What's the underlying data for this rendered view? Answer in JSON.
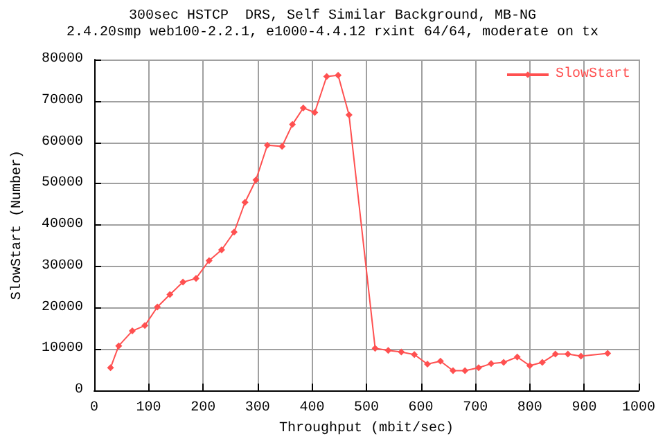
{
  "chart_data": {
    "type": "line",
    "title": "300sec HSTCP  DRS, Self Similar Background, MB-NG",
    "subtitle": "2.4.20smp web100-2.2.1, e1000-4.4.12 rxint 64/64, moderate on tx",
    "xlabel": "Throughput (mbit/sec)",
    "ylabel": "SlowStart (Number)",
    "x": [
      30,
      45,
      70,
      93,
      116,
      139,
      163,
      187,
      211,
      234,
      257,
      277,
      297,
      318,
      345,
      364,
      384,
      405,
      427,
      448,
      468,
      516,
      540,
      564,
      588,
      612,
      636,
      659,
      681,
      706,
      729,
      752,
      777,
      800,
      823,
      847,
      870,
      894,
      943
    ],
    "series": [
      {
        "name": "SlowStart",
        "color": "#ff5050",
        "values": [
          5500,
          10800,
          14400,
          15700,
          20200,
          23200,
          26200,
          27100,
          31400,
          34000,
          38300,
          45500,
          50900,
          59300,
          59000,
          64300,
          68300,
          67200,
          75900,
          76200,
          66600,
          10200,
          9700,
          9300,
          8700,
          6400,
          7100,
          4800,
          4800,
          5500,
          6500,
          6800,
          8100,
          6000,
          6800,
          8800,
          8800,
          8300,
          9000
        ]
      }
    ],
    "xlim": [
      0,
      1000
    ],
    "xticks": [
      0,
      100,
      200,
      300,
      400,
      500,
      600,
      700,
      800,
      900,
      1000
    ],
    "ylim": [
      0,
      80000
    ],
    "yticks": [
      0,
      10000,
      20000,
      30000,
      40000,
      50000,
      60000,
      70000,
      80000
    ],
    "grid": true,
    "legend": "top right",
    "marker": "diamond",
    "line_style": "solid"
  }
}
